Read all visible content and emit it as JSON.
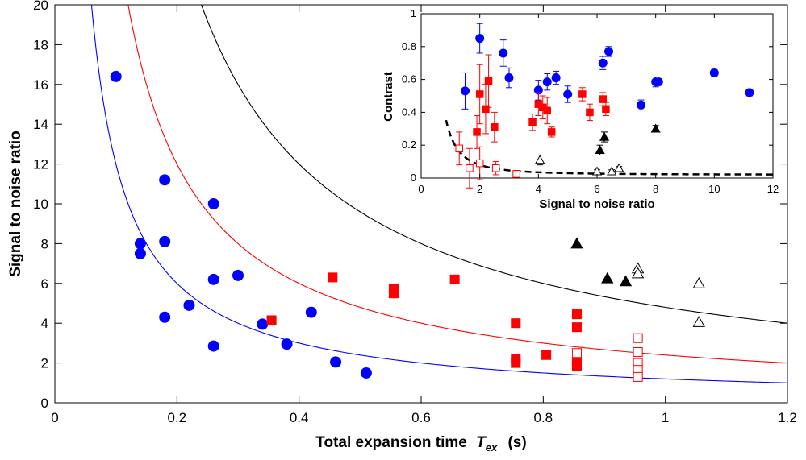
{
  "chart_data": [
    {
      "type": "scatter",
      "xlabel": "Total expansion time",
      "xlabel_symbol": "T",
      "xlabel_sub": "ex",
      "xlabel_unit": "(s)",
      "ylabel": "Signal to noise ratio",
      "xlim": [
        0,
        1.2
      ],
      "ylim": [
        0,
        20
      ],
      "x_ticks": [
        "0",
        "0.2",
        "0.4",
        "0.6",
        "0.8",
        "1",
        "1.2"
      ],
      "y_ticks": [
        "0",
        "2",
        "4",
        "6",
        "8",
        "10",
        "12",
        "14",
        "16",
        "18",
        "20"
      ],
      "x_tick_values": [
        0,
        0.2,
        0.4,
        0.6,
        0.8,
        1.0,
        1.2
      ],
      "y_tick_values": [
        0,
        2,
        4,
        6,
        8,
        10,
        12,
        14,
        16,
        18,
        20
      ],
      "curves": [
        {
          "color": "#0000ff",
          "function": "y = k / x",
          "k": 1.2,
          "x_range": [
            0.06,
            1.2
          ]
        },
        {
          "color": "#ff0000",
          "function": "y = k / x",
          "k": 2.4,
          "x_range": [
            0.12,
            1.2
          ]
        },
        {
          "color": "#000000",
          "function": "y = k / x",
          "k": 4.8,
          "x_range": [
            0.24,
            1.2
          ]
        }
      ],
      "series": [
        {
          "marker": "circle-filled",
          "color": "#0000ff",
          "points": [
            [
              0.1,
              16.4
            ],
            [
              0.14,
              8.0
            ],
            [
              0.14,
              7.5
            ],
            [
              0.18,
              11.2
            ],
            [
              0.18,
              8.1
            ],
            [
              0.18,
              4.3
            ],
            [
              0.22,
              4.9
            ],
            [
              0.26,
              10.0
            ],
            [
              0.26,
              6.2
            ],
            [
              0.26,
              2.85
            ],
            [
              0.3,
              6.4
            ],
            [
              0.34,
              3.95
            ],
            [
              0.38,
              2.95
            ],
            [
              0.42,
              4.55
            ],
            [
              0.46,
              2.05
            ],
            [
              0.51,
              1.5
            ]
          ]
        },
        {
          "marker": "square-filled",
          "color": "#ff0000",
          "points": [
            [
              0.355,
              4.15
            ],
            [
              0.455,
              6.3
            ],
            [
              0.555,
              5.75
            ],
            [
              0.555,
              5.5
            ],
            [
              0.655,
              6.2
            ],
            [
              0.755,
              4.0
            ],
            [
              0.755,
              2.2
            ],
            [
              0.755,
              2.0
            ],
            [
              0.805,
              2.4
            ],
            [
              0.855,
              4.45
            ],
            [
              0.855,
              3.8
            ],
            [
              0.855,
              2.05
            ],
            [
              0.855,
              1.85
            ]
          ]
        },
        {
          "marker": "square-open",
          "color": "#ff0000",
          "points": [
            [
              0.855,
              2.5
            ],
            [
              0.955,
              3.25
            ],
            [
              0.955,
              2.55
            ],
            [
              0.955,
              2.0
            ],
            [
              0.955,
              1.65
            ],
            [
              0.955,
              1.3
            ]
          ]
        },
        {
          "marker": "triangle-filled",
          "color": "#000000",
          "points": [
            [
              0.855,
              8.0
            ],
            [
              0.905,
              6.25
            ],
            [
              0.935,
              6.1
            ]
          ]
        },
        {
          "marker": "triangle-open",
          "color": "#000000",
          "points": [
            [
              0.955,
              6.75
            ],
            [
              0.955,
              6.5
            ],
            [
              1.055,
              6.0
            ],
            [
              1.055,
              4.05
            ]
          ]
        }
      ]
    },
    {
      "type": "scatter",
      "placement": "inset-top-right",
      "xlabel": "Signal to noise ratio",
      "ylabel": "Contrast",
      "xlim": [
        0,
        12
      ],
      "ylim": [
        0,
        1
      ],
      "x_ticks": [
        "0",
        "2",
        "4",
        "6",
        "8",
        "10",
        "12"
      ],
      "y_ticks": [
        "0",
        "0.2",
        "0.4",
        "0.6",
        "0.8",
        "1"
      ],
      "x_tick_values": [
        0,
        2,
        4,
        6,
        8,
        10,
        12
      ],
      "y_tick_values": [
        0,
        0.2,
        0.4,
        0.6,
        0.8,
        1.0
      ],
      "curves": [
        {
          "color": "#000000",
          "style": "dashed",
          "function": "y = k / x^2 + c",
          "k": 0.24,
          "c": 0.02,
          "x_range": [
            0.85,
            12
          ]
        }
      ],
      "series": [
        {
          "marker": "circle-filled",
          "color": "#0000ff",
          "points": [
            [
              1.5,
              0.53,
              0.11
            ],
            [
              2.0,
              0.85,
              0.09
            ],
            [
              2.8,
              0.76,
              0.08
            ],
            [
              3.0,
              0.61,
              0.06
            ],
            [
              4.0,
              0.535,
              0.06
            ],
            [
              4.3,
              0.585,
              0.05
            ],
            [
              4.6,
              0.61,
              0.04
            ],
            [
              5.0,
              0.51,
              0.05
            ],
            [
              6.2,
              0.7,
              0.04
            ],
            [
              6.4,
              0.77,
              0.03
            ],
            [
              7.5,
              0.445,
              0.03
            ],
            [
              8.0,
              0.585,
              0.03
            ],
            [
              8.1,
              0.585,
              0.02
            ],
            [
              10.0,
              0.64,
              0.02
            ],
            [
              11.2,
              0.52,
              0.02
            ]
          ]
        },
        {
          "marker": "square-filled",
          "color": "#ff0000",
          "points": [
            [
              1.9,
              0.28,
              0.1
            ],
            [
              2.0,
              0.51,
              0.18
            ],
            [
              2.2,
              0.42,
              0.15
            ],
            [
              2.3,
              0.59,
              0.16
            ],
            [
              2.5,
              0.31,
              0.09
            ],
            [
              3.8,
              0.34,
              0.05
            ],
            [
              4.0,
              0.45,
              0.07
            ],
            [
              4.15,
              0.43,
              0.07
            ],
            [
              4.3,
              0.41,
              0.08
            ],
            [
              4.45,
              0.28,
              0.03
            ],
            [
              5.5,
              0.51,
              0.04
            ],
            [
              5.75,
              0.4,
              0.05
            ],
            [
              6.2,
              0.48,
              0.04
            ],
            [
              6.3,
              0.42,
              0.04
            ]
          ]
        },
        {
          "marker": "square-open",
          "color": "#ff0000",
          "points": [
            [
              1.3,
              0.18,
              0.1
            ],
            [
              1.65,
              0.06,
              0.12
            ],
            [
              2.0,
              0.09,
              0.1
            ],
            [
              2.55,
              0.06,
              0.04
            ],
            [
              3.25,
              0.025,
              0.02
            ]
          ]
        },
        {
          "marker": "triangle-filled",
          "color": "#000000",
          "points": [
            [
              6.1,
              0.17,
              0.03
            ],
            [
              6.25,
              0.25,
              0.03
            ],
            [
              8.0,
              0.3,
              0.02
            ]
          ]
        },
        {
          "marker": "triangle-open",
          "color": "#000000",
          "points": [
            [
              4.05,
              0.11,
              0.03
            ],
            [
              6.0,
              0.04,
              0.01
            ],
            [
              6.5,
              0.04,
              0.01
            ],
            [
              6.75,
              0.06,
              0.01
            ]
          ]
        }
      ]
    }
  ]
}
